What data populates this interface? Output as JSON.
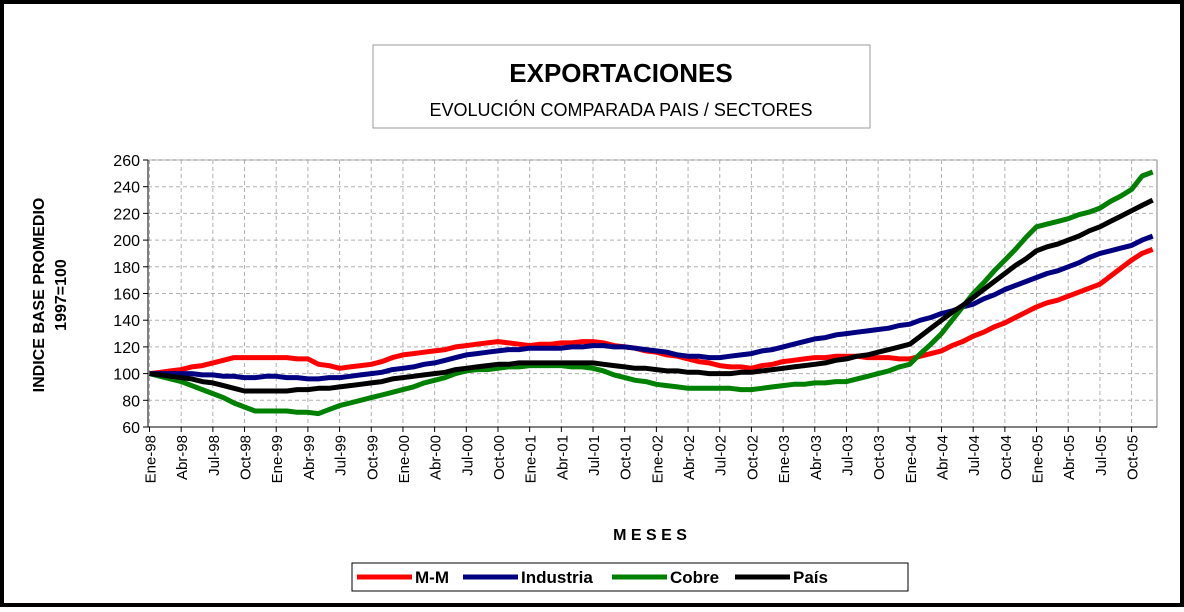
{
  "chart_data": {
    "type": "line",
    "title": "EXPORTACIONES",
    "subtitle": "EVOLUCIÓN COMPARADA PAIS / SECTORES",
    "xlabel": "M E S E S",
    "ylabel": [
      "INDICE BASE PROMEDIO",
      "1997=100"
    ],
    "categories": [
      "Ene-98",
      null,
      null,
      "Abr-98",
      null,
      null,
      "Jul-98",
      null,
      null,
      "Oct-98",
      null,
      null,
      "Ene-99",
      null,
      null,
      "Abr-99",
      null,
      null,
      "Jul-99",
      null,
      null,
      "Oct-99",
      null,
      null,
      "Ene-00",
      null,
      null,
      "Abr-00",
      null,
      null,
      "Jul-00",
      null,
      null,
      "Oct-00",
      null,
      null,
      "Ene-01",
      null,
      null,
      "Abr-01",
      null,
      null,
      "Jul-01",
      null,
      null,
      "Oct-01",
      null,
      null,
      "Ene-02",
      null,
      null,
      "Abr-02",
      null,
      null,
      "Jul-02",
      null,
      null,
      "Oct-02",
      null,
      null,
      "Ene-03",
      null,
      null,
      "Abr-03",
      null,
      null,
      "Jul-03",
      null,
      null,
      "Oct-03",
      null,
      null,
      "Ene-04",
      null,
      null,
      "Abr-04",
      null,
      null,
      "Jul-04",
      null,
      null,
      "Oct-04",
      null,
      null,
      "Ene-05",
      null,
      null,
      "Abr-05",
      null,
      null,
      "Jul-05",
      null,
      null,
      "Oct-05",
      null,
      null
    ],
    "series": [
      {
        "name": "M-M",
        "color": "#ff0000",
        "values": [
          100,
          101,
          102,
          103,
          105,
          106,
          108,
          110,
          112,
          112,
          112,
          112,
          112,
          112,
          111,
          111,
          107,
          106,
          104,
          105,
          106,
          107,
          109,
          112,
          114,
          115,
          116,
          117,
          118,
          120,
          121,
          122,
          123,
          124,
          123,
          122,
          121,
          122,
          122,
          123,
          123,
          124,
          124,
          123,
          121,
          120,
          119,
          117,
          116,
          114,
          113,
          111,
          109,
          108,
          106,
          105,
          105,
          104,
          106,
          107,
          109,
          110,
          111,
          112,
          112,
          113,
          113,
          113,
          112,
          112,
          112,
          111,
          111,
          113,
          115,
          117,
          121,
          124,
          128,
          131,
          135,
          138,
          142,
          146,
          150,
          153,
          155,
          158,
          161,
          164,
          167,
          173,
          179,
          185,
          190,
          193
        ]
      },
      {
        "name": "Industria",
        "color": "#000080",
        "values": [
          100,
          100,
          100,
          100,
          100,
          99,
          99,
          98,
          98,
          97,
          97,
          98,
          98,
          97,
          97,
          96,
          96,
          97,
          97,
          98,
          99,
          100,
          101,
          103,
          104,
          105,
          107,
          108,
          110,
          112,
          114,
          115,
          116,
          117,
          118,
          118,
          119,
          119,
          119,
          119,
          120,
          120,
          121,
          121,
          120,
          120,
          119,
          118,
          117,
          116,
          114,
          113,
          113,
          112,
          112,
          113,
          114,
          115,
          117,
          118,
          120,
          122,
          124,
          126,
          127,
          129,
          130,
          131,
          132,
          133,
          134,
          136,
          137,
          140,
          142,
          145,
          147,
          150,
          152,
          156,
          159,
          163,
          166,
          169,
          172,
          175,
          177,
          180,
          183,
          187,
          190,
          192,
          194,
          196,
          200,
          203
        ]
      },
      {
        "name": "Cobre",
        "color": "#008000",
        "values": [
          100,
          98,
          96,
          94,
          91,
          88,
          85,
          82,
          78,
          75,
          72,
          72,
          72,
          72,
          71,
          71,
          70,
          73,
          76,
          78,
          80,
          82,
          84,
          86,
          88,
          90,
          93,
          95,
          97,
          100,
          102,
          103,
          103,
          104,
          105,
          105,
          106,
          106,
          106,
          106,
          105,
          105,
          104,
          102,
          99,
          97,
          95,
          94,
          92,
          91,
          90,
          89,
          89,
          89,
          89,
          89,
          88,
          88,
          89,
          90,
          91,
          92,
          92,
          93,
          93,
          94,
          94,
          96,
          98,
          100,
          102,
          105,
          107,
          115,
          122,
          130,
          140,
          150,
          160,
          168,
          177,
          185,
          193,
          202,
          210,
          212,
          214,
          216,
          219,
          221,
          224,
          229,
          233,
          238,
          248,
          251
        ]
      },
      {
        "name": "País",
        "color": "#000000",
        "values": [
          100,
          99,
          98,
          97,
          96,
          94,
          93,
          91,
          89,
          87,
          87,
          87,
          87,
          87,
          88,
          88,
          89,
          89,
          90,
          91,
          92,
          93,
          94,
          96,
          97,
          98,
          99,
          100,
          101,
          103,
          104,
          105,
          106,
          107,
          107,
          108,
          108,
          108,
          108,
          108,
          108,
          108,
          108,
          107,
          106,
          105,
          104,
          104,
          103,
          102,
          102,
          101,
          101,
          100,
          100,
          100,
          101,
          101,
          102,
          103,
          104,
          105,
          106,
          107,
          108,
          110,
          111,
          113,
          114,
          116,
          118,
          120,
          122,
          128,
          134,
          140,
          146,
          151,
          157,
          163,
          169,
          175,
          181,
          186,
          192,
          195,
          197,
          200,
          203,
          207,
          210,
          214,
          218,
          222,
          226,
          230
        ]
      }
    ],
    "ylim": [
      60,
      260
    ],
    "yticks": [
      60,
      80,
      100,
      120,
      140,
      160,
      180,
      200,
      220,
      240,
      260
    ],
    "grid": true,
    "legend": "bottom"
  }
}
